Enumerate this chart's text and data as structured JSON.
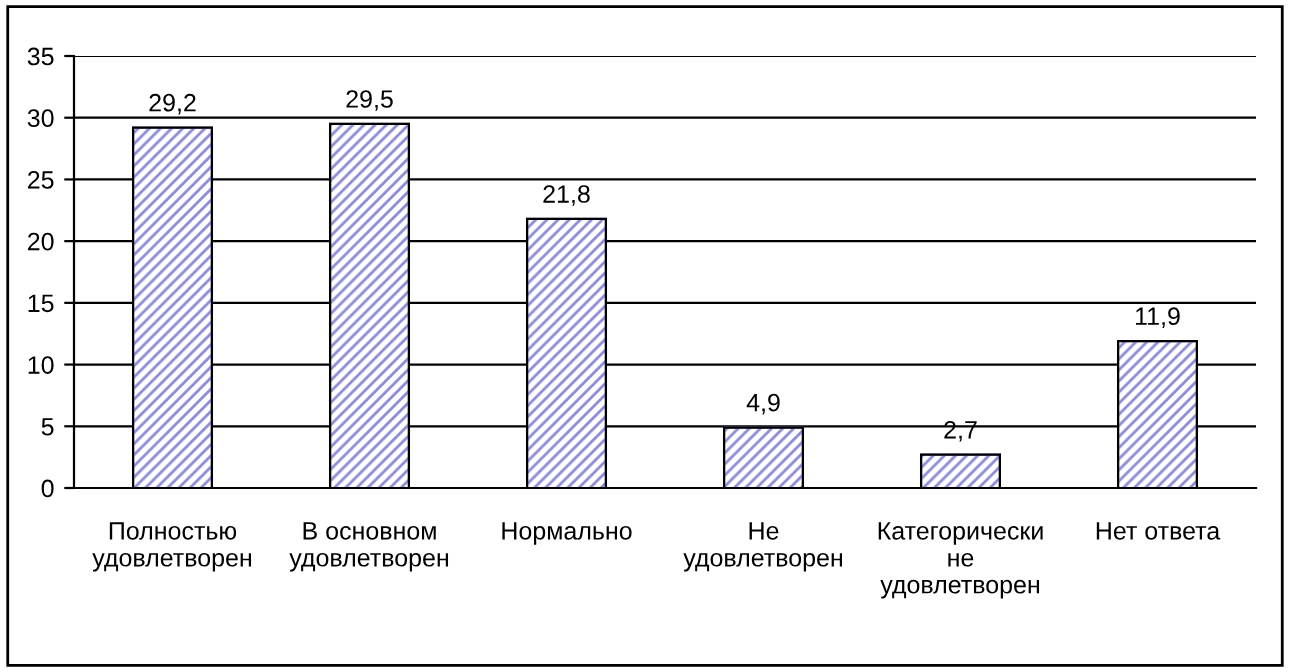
{
  "chart_data": {
    "type": "bar",
    "categories": [
      "Полностью\nудовлетворен",
      "В основном\nудовлетворен",
      "Нормально",
      "Не\nудовлетворен",
      "Категорически\nне\nудовлетворен",
      "Нет ответа"
    ],
    "values": [
      29.2,
      29.5,
      21.8,
      4.9,
      2.7,
      11.9
    ],
    "value_labels": [
      "29,2",
      "29,5",
      "21,8",
      "4,9",
      "2,7",
      "11,9"
    ],
    "color": "#8c8cd8",
    "ylim": [
      0,
      35
    ],
    "yticks": [
      0,
      5,
      10,
      15,
      20,
      25,
      30,
      35
    ],
    "grid": "y",
    "legend": false
  }
}
